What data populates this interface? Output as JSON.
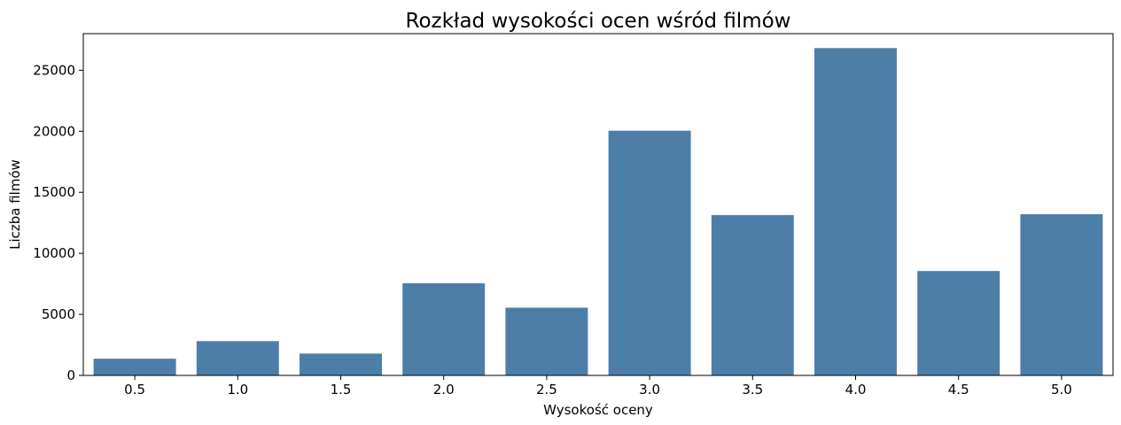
{
  "chart_data": {
    "type": "bar",
    "title": "Rozkład wysokości ocen wśród filmów",
    "xlabel": "Wysokość oceny",
    "ylabel": "Liczba filmów",
    "categories": [
      "0.5",
      "1.0",
      "1.5",
      "2.0",
      "2.5",
      "3.0",
      "3.5",
      "4.0",
      "4.5",
      "5.0"
    ],
    "values": [
      1370,
      2811,
      1791,
      7551,
      5550,
      20047,
      13136,
      26818,
      8551,
      13211
    ],
    "ylim": [
      0,
      28000
    ],
    "yticks": [
      0,
      5000,
      10000,
      15000,
      20000,
      25000
    ],
    "grid": false,
    "bar_color": "#4c7ea8"
  }
}
